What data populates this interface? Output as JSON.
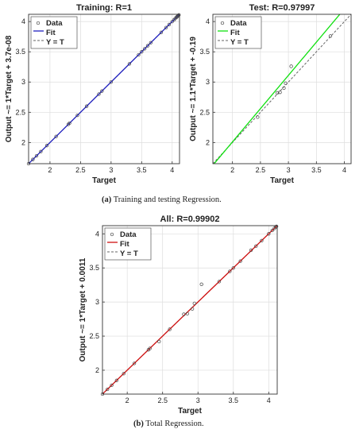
{
  "captions": {
    "a_letter": "(a)",
    "a_text": "Training and testing Regression.",
    "b_letter": "(b)",
    "b_text": "Total Regression."
  },
  "colors": {
    "training_fit": "#1f1fbf",
    "test_fit": "#10e010",
    "all_fit": "#d01010",
    "ideal": "#666666",
    "data_marker": "#444444"
  },
  "chart_data": [
    {
      "type": "scatter",
      "title": "Training: R=1",
      "xlabel": "Target",
      "ylabel": "Output ~= 1*Target + 3.7e-08",
      "xlim": [
        1.65,
        4.12
      ],
      "ylim": [
        1.65,
        4.12
      ],
      "xticks": [
        2,
        2.5,
        3,
        3.5,
        4
      ],
      "yticks": [
        2,
        2.5,
        3,
        3.5,
        4
      ],
      "fit": {
        "slope": 1,
        "intercept": 3.7e-08
      },
      "legend": {
        "position": "top-left",
        "entries": [
          "Data",
          "Fit",
          "Y = T"
        ]
      },
      "grid": true,
      "points": [
        [
          1.65,
          1.65
        ],
        [
          1.72,
          1.72
        ],
        [
          1.78,
          1.78
        ],
        [
          1.85,
          1.85
        ],
        [
          1.95,
          1.95
        ],
        [
          2.1,
          2.1
        ],
        [
          2.3,
          2.3
        ],
        [
          2.32,
          2.32
        ],
        [
          2.45,
          2.45
        ],
        [
          2.6,
          2.6
        ],
        [
          2.8,
          2.8
        ],
        [
          2.85,
          2.85
        ],
        [
          3.0,
          3.0
        ],
        [
          3.3,
          3.3
        ],
        [
          3.45,
          3.45
        ],
        [
          3.5,
          3.5
        ],
        [
          3.55,
          3.55
        ],
        [
          3.6,
          3.6
        ],
        [
          3.65,
          3.65
        ],
        [
          3.82,
          3.82
        ],
        [
          3.9,
          3.9
        ],
        [
          3.95,
          3.95
        ],
        [
          4.0,
          4.0
        ],
        [
          4.03,
          4.03
        ],
        [
          4.05,
          4.05
        ],
        [
          4.07,
          4.07
        ],
        [
          4.08,
          4.08
        ],
        [
          4.09,
          4.09
        ],
        [
          4.1,
          4.1
        ],
        [
          4.11,
          4.11
        ]
      ]
    },
    {
      "type": "scatter",
      "title": "Test: R=0.97997",
      "xlabel": "Target",
      "ylabel": "Output ~= 1.1*Target + -0.19",
      "xlim": [
        1.65,
        4.12
      ],
      "ylim": [
        1.65,
        4.12
      ],
      "xticks": [
        2,
        2.5,
        3,
        3.5,
        4
      ],
      "yticks": [
        2,
        2.5,
        3,
        3.5,
        4
      ],
      "fit": {
        "slope": 1.1,
        "intercept": -0.19
      },
      "legend": {
        "position": "top-left",
        "entries": [
          "Data",
          "Fit",
          "Y = T"
        ]
      },
      "grid": true,
      "points": [
        [
          2.45,
          2.42
        ],
        [
          2.8,
          2.82
        ],
        [
          2.85,
          2.83
        ],
        [
          2.92,
          2.9
        ],
        [
          2.95,
          2.98
        ],
        [
          3.05,
          3.26
        ],
        [
          3.75,
          3.76
        ]
      ]
    },
    {
      "type": "scatter",
      "title": "All: R=0.99902",
      "xlabel": "Target",
      "ylabel": "Output ~= 1*Target + 0.0011",
      "xlim": [
        1.65,
        4.12
      ],
      "ylim": [
        1.65,
        4.12
      ],
      "xticks": [
        2,
        2.5,
        3,
        3.5,
        4
      ],
      "yticks": [
        2,
        2.5,
        3,
        3.5,
        4
      ],
      "fit": {
        "slope": 1,
        "intercept": 0.0011
      },
      "legend": {
        "position": "top-left",
        "entries": [
          "Data",
          "Fit",
          "Y = T"
        ]
      },
      "grid": true,
      "points": [
        [
          1.65,
          1.65
        ],
        [
          1.72,
          1.72
        ],
        [
          1.78,
          1.78
        ],
        [
          1.85,
          1.85
        ],
        [
          1.95,
          1.95
        ],
        [
          2.1,
          2.1
        ],
        [
          2.3,
          2.3
        ],
        [
          2.32,
          2.32
        ],
        [
          2.45,
          2.42
        ],
        [
          2.6,
          2.6
        ],
        [
          2.8,
          2.82
        ],
        [
          2.85,
          2.83
        ],
        [
          2.92,
          2.9
        ],
        [
          2.95,
          2.98
        ],
        [
          3.05,
          3.26
        ],
        [
          3.3,
          3.3
        ],
        [
          3.45,
          3.45
        ],
        [
          3.5,
          3.5
        ],
        [
          3.6,
          3.6
        ],
        [
          3.75,
          3.76
        ],
        [
          3.82,
          3.82
        ],
        [
          3.9,
          3.9
        ],
        [
          4.0,
          4.0
        ],
        [
          4.05,
          4.05
        ],
        [
          4.08,
          4.08
        ],
        [
          4.1,
          4.1
        ],
        [
          4.11,
          4.11
        ]
      ]
    }
  ]
}
